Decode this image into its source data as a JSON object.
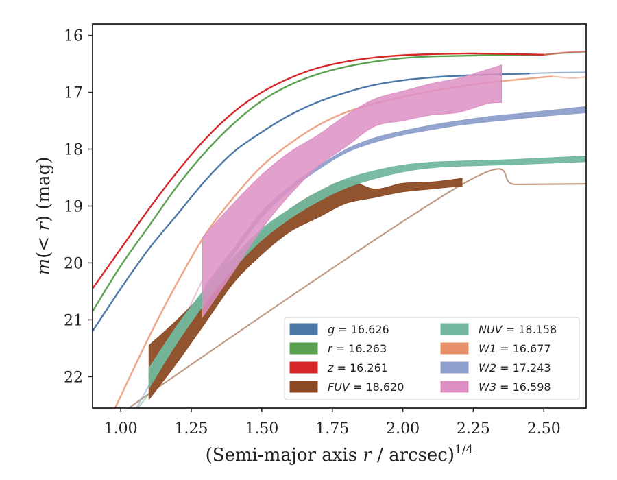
{
  "chart_data": {
    "type": "line",
    "title": "",
    "xlabel": "(Semi-major axis r / arcsec)^{1/4}",
    "ylabel": "m(< r) (mag)",
    "xlim": [
      0.9,
      2.65
    ],
    "ylim": [
      22.55,
      15.8
    ],
    "y_inverted": true,
    "grid": false,
    "legend_position": "lower-right",
    "x_ticks": [
      "1.00",
      "1.25",
      "1.50",
      "1.75",
      "2.00",
      "2.25",
      "2.50"
    ],
    "y_ticks": [
      "16",
      "17",
      "18",
      "19",
      "20",
      "21",
      "22"
    ],
    "series": [
      {
        "name": "g = 16.626",
        "label_var": "g",
        "label_value": "16.626",
        "italic": true,
        "color": "#4c78a8",
        "kind": "line",
        "total": 16.626,
        "x": [
          0.9,
          1.0,
          1.1,
          1.2,
          1.3,
          1.4,
          1.5,
          1.6,
          1.7,
          1.8,
          1.9,
          2.0,
          2.1,
          2.2,
          2.3,
          2.45
        ],
        "y": [
          21.2,
          20.45,
          19.75,
          19.15,
          18.55,
          18.05,
          17.7,
          17.4,
          17.17,
          17.0,
          16.87,
          16.79,
          16.74,
          16.71,
          16.69,
          16.67
        ],
        "ext_x": [
          2.45,
          2.55,
          2.65
        ],
        "ext_y": [
          16.67,
          16.655,
          16.65
        ]
      },
      {
        "name": "r = 16.263",
        "label_var": "r",
        "label_value": "16.263",
        "italic": true,
        "color": "#59a14f",
        "kind": "line",
        "total": 16.263,
        "x": [
          0.9,
          1.0,
          1.1,
          1.2,
          1.3,
          1.4,
          1.5,
          1.6,
          1.7,
          1.8,
          1.9,
          2.0,
          2.1,
          2.2,
          2.3,
          2.5
        ],
        "y": [
          20.85,
          20.05,
          19.35,
          18.65,
          18.05,
          17.55,
          17.15,
          16.87,
          16.68,
          16.55,
          16.46,
          16.4,
          16.37,
          16.36,
          16.35,
          16.34
        ],
        "ext_x": [
          2.5,
          2.58,
          2.65
        ],
        "ext_y": [
          16.34,
          16.31,
          16.3
        ]
      },
      {
        "name": "z = 16.261",
        "label_var": "z",
        "label_value": "16.261",
        "italic": true,
        "color": "#d62728",
        "kind": "line",
        "total": 16.261,
        "x": [
          0.9,
          1.0,
          1.1,
          1.2,
          1.3,
          1.4,
          1.5,
          1.6,
          1.7,
          1.8,
          1.9,
          2.0,
          2.1,
          2.2,
          2.3,
          2.5
        ],
        "y": [
          20.45,
          19.75,
          19.05,
          18.4,
          17.82,
          17.35,
          17.0,
          16.75,
          16.57,
          16.46,
          16.39,
          16.35,
          16.33,
          16.32,
          16.32,
          16.34
        ],
        "ext_x": [
          2.5,
          2.58,
          2.65
        ],
        "ext_y": [
          16.34,
          16.3,
          16.28
        ]
      },
      {
        "name": "FUV = 18.620",
        "label_var": "FUV",
        "label_value": "18.620",
        "italic": true,
        "color": "#8c4a24",
        "kind": "band",
        "total": 18.62,
        "x": [
          1.1,
          1.2,
          1.3,
          1.4,
          1.5,
          1.6,
          1.7,
          1.8,
          1.9,
          2.0,
          2.1,
          2.2,
          2.21
        ],
        "lower": [
          21.45,
          21.0,
          20.5,
          20.0,
          19.45,
          19.05,
          18.75,
          18.55,
          18.7,
          18.6,
          18.58,
          18.52,
          18.52
        ],
        "upper": [
          22.4,
          21.75,
          21.05,
          20.35,
          19.85,
          19.45,
          19.2,
          18.95,
          18.85,
          18.75,
          18.7,
          18.65,
          18.65
        ],
        "ext_x": [
          1.0,
          1.05,
          1.1,
          2.21,
          2.4,
          2.65
        ],
        "ext_y": [
          22.8,
          22.6,
          22.3,
          18.62,
          18.62,
          18.61
        ]
      },
      {
        "name": "NUV = 18.158",
        "label_var": "NUV",
        "label_value": "18.158",
        "italic": true,
        "color": "#72b89e",
        "kind": "band",
        "total": 18.158,
        "x": [
          1.1,
          1.2,
          1.3,
          1.4,
          1.5,
          1.6,
          1.7,
          1.8,
          1.9,
          2.0,
          2.1,
          2.2,
          2.4,
          2.65
        ],
        "lower": [
          21.85,
          21.1,
          20.45,
          19.9,
          19.4,
          19.05,
          18.75,
          18.52,
          18.38,
          18.28,
          18.23,
          18.21,
          18.18,
          18.12
        ],
        "upper": [
          22.2,
          21.4,
          20.7,
          20.1,
          19.6,
          19.22,
          18.92,
          18.68,
          18.52,
          18.4,
          18.33,
          18.3,
          18.27,
          18.22
        ],
        "ext_x": [
          1.02,
          1.06,
          1.1
        ],
        "ext_y": [
          22.75,
          22.55,
          22.3
        ]
      },
      {
        "name": "W1 = 16.677",
        "label_var": "W1",
        "label_value": "16.677",
        "italic": true,
        "color": "#e8906a",
        "kind": "line",
        "total": 16.677,
        "x": [
          0.98,
          1.1,
          1.2,
          1.3,
          1.4,
          1.5,
          1.6,
          1.7,
          1.8,
          1.9,
          2.0,
          2.1,
          2.2,
          2.3,
          2.4,
          2.53
        ],
        "y": [
          22.55,
          21.3,
          20.35,
          19.5,
          18.85,
          18.3,
          17.9,
          17.58,
          17.35,
          17.2,
          17.08,
          16.98,
          16.9,
          16.83,
          16.78,
          16.72
        ],
        "ext_x": [
          2.53,
          2.6,
          2.65
        ],
        "ext_y": [
          16.72,
          16.75,
          16.73
        ]
      },
      {
        "name": "W2 = 17.243",
        "label_var": "W2",
        "label_value": "17.243",
        "italic": true,
        "color": "#8da0cb",
        "kind": "band",
        "total": 17.243,
        "x": [
          1.3,
          1.4,
          1.5,
          1.6,
          1.7,
          1.8,
          1.9,
          2.0,
          2.1,
          2.2,
          2.3,
          2.4,
          2.5,
          2.65
        ],
        "lower": [
          20.4,
          19.75,
          19.1,
          18.65,
          18.3,
          18.0,
          17.8,
          17.68,
          17.58,
          17.5,
          17.43,
          17.38,
          17.33,
          17.25
        ],
        "upper": [
          20.5,
          19.85,
          19.2,
          18.72,
          18.36,
          18.06,
          17.88,
          17.75,
          17.66,
          17.58,
          17.52,
          17.47,
          17.42,
          17.36
        ],
        "ext_x": [
          1.05,
          1.15,
          1.22,
          1.3
        ],
        "ext_y": [
          22.6,
          21.7,
          21.0,
          20.45
        ]
      },
      {
        "name": "W3 = 16.598",
        "label_var": "W3",
        "label_value": "16.598",
        "italic": true,
        "color": "#dd8fc3",
        "kind": "band",
        "total": 16.598,
        "x": [
          1.29,
          1.4,
          1.5,
          1.6,
          1.7,
          1.8,
          1.9,
          2.0,
          2.1,
          2.2,
          2.3,
          2.35
        ],
        "lower": [
          19.55,
          18.95,
          18.45,
          18.05,
          17.75,
          17.4,
          17.12,
          16.98,
          16.85,
          16.75,
          16.6,
          16.52
        ],
        "upper": [
          20.95,
          20.15,
          19.4,
          18.8,
          18.3,
          17.95,
          17.6,
          17.5,
          17.4,
          17.35,
          17.2,
          17.18
        ],
        "ext_x": [
          1.1,
          1.2,
          1.29
        ],
        "ext_y": [
          22.0,
          21.2,
          20.3
        ]
      }
    ]
  }
}
